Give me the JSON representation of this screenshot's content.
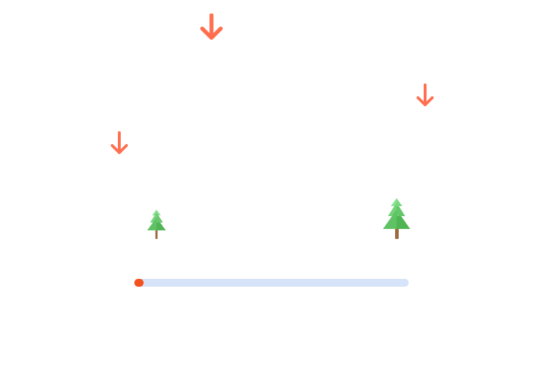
{
  "scene": {
    "arrows": [
      {
        "icon": "down-arrow-icon"
      },
      {
        "icon": "down-arrow-icon"
      },
      {
        "icon": "down-arrow-icon"
      }
    ],
    "trees": [
      {
        "icon": "pine-tree-icon",
        "size": "small"
      },
      {
        "icon": "pine-tree-icon",
        "size": "large"
      }
    ]
  },
  "progress": {
    "fraction": 0.035
  },
  "colors": {
    "arrow": "#ff6f4f",
    "progress_track": "#d6e3f8",
    "progress_fill": "#f4511e",
    "tree_light": "#86df8e",
    "tree_mid": "#6fd075",
    "tree_dark": "#4fb552",
    "trunk": "#9b6a3c"
  }
}
